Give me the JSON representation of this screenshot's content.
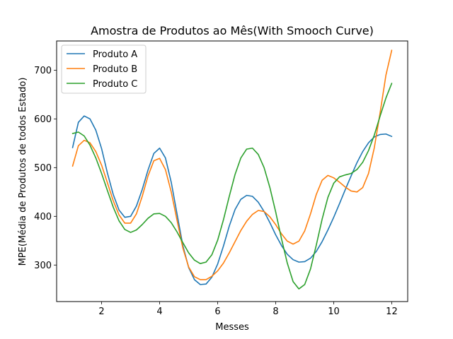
{
  "chart_data": {
    "type": "line",
    "title": "Amostra de Produtos ao Mês(With Smooch Curve)",
    "xlabel": "Messes",
    "ylabel": "MPE(Média de Produtos de todos Estado)",
    "xlim": [
      0.45,
      12.55
    ],
    "ylim": [
      225,
      760
    ],
    "xticks": [
      2,
      4,
      6,
      8,
      10,
      12
    ],
    "yticks": [
      300,
      400,
      500,
      600,
      700
    ],
    "legend_position": "top-left",
    "grid": false,
    "series": [
      {
        "name": "Produto A",
        "color": "#1f77b4",
        "points": [
          [
            1.0,
            541
          ],
          [
            1.2,
            593
          ],
          [
            1.4,
            606
          ],
          [
            1.6,
            600
          ],
          [
            1.8,
            577
          ],
          [
            2.0,
            539
          ],
          [
            2.2,
            489
          ],
          [
            2.4,
            445
          ],
          [
            2.6,
            413
          ],
          [
            2.8,
            398
          ],
          [
            3.0,
            400
          ],
          [
            3.2,
            421
          ],
          [
            3.4,
            455
          ],
          [
            3.6,
            495
          ],
          [
            3.8,
            529
          ],
          [
            4.0,
            540
          ],
          [
            4.2,
            520
          ],
          [
            4.4,
            470
          ],
          [
            4.6,
            405
          ],
          [
            4.8,
            340
          ],
          [
            5.0,
            295
          ],
          [
            5.2,
            270
          ],
          [
            5.4,
            260
          ],
          [
            5.6,
            261
          ],
          [
            5.8,
            275
          ],
          [
            6.0,
            302
          ],
          [
            6.2,
            339
          ],
          [
            6.4,
            380
          ],
          [
            6.6,
            414
          ],
          [
            6.8,
            435
          ],
          [
            7.0,
            443
          ],
          [
            7.2,
            441
          ],
          [
            7.4,
            429
          ],
          [
            7.6,
            410
          ],
          [
            7.8,
            387
          ],
          [
            8.0,
            362
          ],
          [
            8.2,
            340
          ],
          [
            8.4,
            322
          ],
          [
            8.6,
            311
          ],
          [
            8.8,
            306
          ],
          [
            9.0,
            307
          ],
          [
            9.2,
            314
          ],
          [
            9.4,
            328
          ],
          [
            9.6,
            348
          ],
          [
            9.8,
            372
          ],
          [
            10.0,
            398
          ],
          [
            10.2,
            426
          ],
          [
            10.4,
            455
          ],
          [
            10.6,
            483
          ],
          [
            10.8,
            510
          ],
          [
            11.0,
            533
          ],
          [
            11.2,
            551
          ],
          [
            11.4,
            563
          ],
          [
            11.6,
            568
          ],
          [
            11.8,
            569
          ],
          [
            12.0,
            564
          ]
        ]
      },
      {
        "name": "Produto B",
        "color": "#ff7f0e",
        "points": [
          [
            1.0,
            503
          ],
          [
            1.2,
            545
          ],
          [
            1.4,
            556
          ],
          [
            1.6,
            551
          ],
          [
            1.8,
            533
          ],
          [
            2.0,
            505
          ],
          [
            2.2,
            469
          ],
          [
            2.4,
            432
          ],
          [
            2.6,
            403
          ],
          [
            2.8,
            386
          ],
          [
            3.0,
            386
          ],
          [
            3.2,
            405
          ],
          [
            3.4,
            441
          ],
          [
            3.6,
            483
          ],
          [
            3.8,
            514
          ],
          [
            4.0,
            519
          ],
          [
            4.2,
            496
          ],
          [
            4.4,
            450
          ],
          [
            4.6,
            392
          ],
          [
            4.8,
            335
          ],
          [
            5.0,
            296
          ],
          [
            5.2,
            276
          ],
          [
            5.4,
            270
          ],
          [
            5.6,
            270
          ],
          [
            5.8,
            277
          ],
          [
            6.0,
            288
          ],
          [
            6.2,
            304
          ],
          [
            6.4,
            325
          ],
          [
            6.6,
            348
          ],
          [
            6.8,
            371
          ],
          [
            7.0,
            390
          ],
          [
            7.2,
            404
          ],
          [
            7.4,
            412
          ],
          [
            7.6,
            410
          ],
          [
            7.8,
            399
          ],
          [
            8.0,
            383
          ],
          [
            8.2,
            364
          ],
          [
            8.4,
            349
          ],
          [
            8.6,
            343
          ],
          [
            8.8,
            349
          ],
          [
            9.0,
            370
          ],
          [
            9.2,
            405
          ],
          [
            9.4,
            445
          ],
          [
            9.6,
            474
          ],
          [
            9.8,
            484
          ],
          [
            10.0,
            479
          ],
          [
            10.2,
            470
          ],
          [
            10.4,
            460
          ],
          [
            10.6,
            452
          ],
          [
            10.8,
            450
          ],
          [
            11.0,
            459
          ],
          [
            11.2,
            488
          ],
          [
            11.4,
            541
          ],
          [
            11.6,
            613
          ],
          [
            11.8,
            690
          ],
          [
            12.0,
            741
          ]
        ]
      },
      {
        "name": "Produto C",
        "color": "#2ca02c",
        "points": [
          [
            1.0,
            570
          ],
          [
            1.2,
            573
          ],
          [
            1.4,
            565
          ],
          [
            1.6,
            546
          ],
          [
            1.8,
            520
          ],
          [
            2.0,
            488
          ],
          [
            2.2,
            453
          ],
          [
            2.4,
            419
          ],
          [
            2.6,
            391
          ],
          [
            2.8,
            373
          ],
          [
            3.0,
            367
          ],
          [
            3.2,
            372
          ],
          [
            3.4,
            383
          ],
          [
            3.6,
            396
          ],
          [
            3.8,
            405
          ],
          [
            4.0,
            406
          ],
          [
            4.2,
            400
          ],
          [
            4.4,
            387
          ],
          [
            4.6,
            368
          ],
          [
            4.8,
            346
          ],
          [
            5.0,
            325
          ],
          [
            5.2,
            310
          ],
          [
            5.4,
            303
          ],
          [
            5.6,
            306
          ],
          [
            5.8,
            321
          ],
          [
            6.0,
            351
          ],
          [
            6.2,
            393
          ],
          [
            6.4,
            441
          ],
          [
            6.6,
            486
          ],
          [
            6.8,
            520
          ],
          [
            7.0,
            538
          ],
          [
            7.2,
            540
          ],
          [
            7.4,
            527
          ],
          [
            7.6,
            500
          ],
          [
            7.8,
            459
          ],
          [
            8.0,
            409
          ],
          [
            8.2,
            354
          ],
          [
            8.4,
            304
          ],
          [
            8.6,
            266
          ],
          [
            8.8,
            251
          ],
          [
            9.0,
            260
          ],
          [
            9.2,
            292
          ],
          [
            9.4,
            341
          ],
          [
            9.6,
            394
          ],
          [
            9.8,
            439
          ],
          [
            10.0,
            468
          ],
          [
            10.2,
            481
          ],
          [
            10.4,
            485
          ],
          [
            10.6,
            488
          ],
          [
            10.8,
            496
          ],
          [
            11.0,
            511
          ],
          [
            11.2,
            535
          ],
          [
            11.4,
            567
          ],
          [
            11.6,
            606
          ],
          [
            11.8,
            643
          ],
          [
            12.0,
            673
          ]
        ]
      }
    ]
  }
}
